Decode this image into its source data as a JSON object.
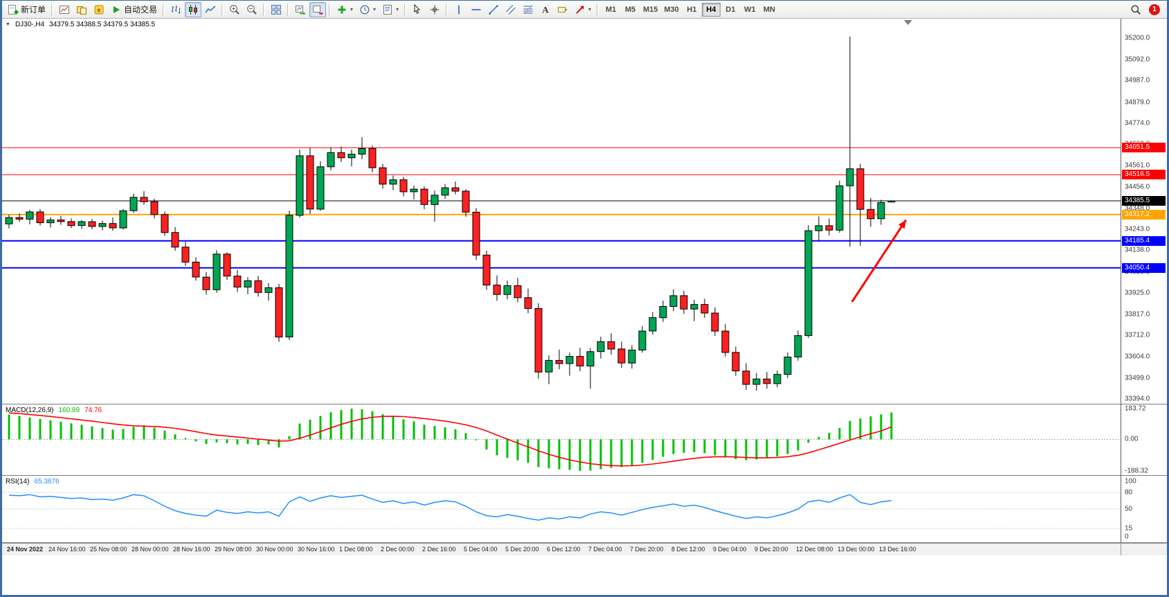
{
  "toolbar": {
    "buttons": [
      {
        "type": "button",
        "name": "new-order",
        "icon": "new-order",
        "label": "新订单"
      },
      {
        "type": "sep"
      },
      {
        "type": "button",
        "name": "new-chart",
        "icon": "new-chart"
      },
      {
        "type": "button",
        "name": "profiles",
        "icon": "profiles"
      },
      {
        "type": "button",
        "name": "metaeditor",
        "icon": "metaeditor"
      },
      {
        "type": "button",
        "name": "autotrading",
        "icon": "play",
        "label": "自动交易"
      },
      {
        "type": "sep"
      },
      {
        "type": "button",
        "name": "bar-chart-mode",
        "icon": "bars"
      },
      {
        "type": "button",
        "name": "candlestick-mode",
        "icon": "candles",
        "active": true
      },
      {
        "type": "button",
        "name": "line-chart-mode",
        "icon": "line"
      },
      {
        "type": "sep"
      },
      {
        "type": "button",
        "name": "zoom-in",
        "icon": "zoom-in"
      },
      {
        "type": "button",
        "name": "zoom-out",
        "icon": "zoom-out"
      },
      {
        "type": "sep"
      },
      {
        "type": "button",
        "name": "tile-windows",
        "icon": "tile"
      },
      {
        "type": "sep"
      },
      {
        "type": "button",
        "name": "auto-scroll",
        "icon": "auto-scroll"
      },
      {
        "type": "button",
        "name": "chart-shift",
        "icon": "chart-shift",
        "active": true
      },
      {
        "type": "sep"
      },
      {
        "type": "button",
        "name": "indicators-list",
        "icon": "indicator-plus",
        "dropdown": true
      },
      {
        "type": "button",
        "name": "periods-list",
        "icon": "clock",
        "dropdown": true
      },
      {
        "type": "button",
        "name": "templates",
        "icon": "template",
        "dropdown": true
      },
      {
        "type": "sep"
      },
      {
        "type": "button",
        "name": "cursor-tool",
        "icon": "cursor"
      },
      {
        "type": "button",
        "name": "crosshair-tool",
        "icon": "crosshair"
      },
      {
        "type": "sep"
      },
      {
        "type": "button",
        "name": "vertical-line-tool",
        "icon": "vline"
      },
      {
        "type": "button",
        "name": "horizontal-line-tool",
        "icon": "hline"
      },
      {
        "type": "button",
        "name": "trendline-tool",
        "icon": "trendline"
      },
      {
        "type": "button",
        "name": "channel-tool",
        "icon": "channel"
      },
      {
        "type": "button",
        "name": "fibonacci-tool",
        "icon": "fibonacci"
      },
      {
        "type": "button",
        "name": "text-tool",
        "icon": "text"
      },
      {
        "type": "button",
        "name": "label-tool",
        "icon": "label"
      },
      {
        "type": "button",
        "name": "arrows-tool",
        "icon": "arrow-shape",
        "dropdown": true
      },
      {
        "type": "sep"
      },
      {
        "type": "timeframes"
      },
      {
        "type": "spacer"
      },
      {
        "type": "button",
        "name": "search",
        "icon": "search"
      },
      {
        "type": "badge",
        "name": "notifications",
        "text": "1",
        "color": "#e01212"
      }
    ],
    "timeframes": {
      "items": [
        "M1",
        "M5",
        "M15",
        "M30",
        "H1",
        "H4",
        "D1",
        "W1",
        "MN"
      ],
      "active": "H4"
    }
  },
  "chart": {
    "symbol_period": "DJ30-,H4",
    "ohlc": "34379.5 34388.5 34379.5 34385.5"
  },
  "chart_data": {
    "type": "candlestick",
    "symbol": "DJ30-",
    "timeframe": "H4",
    "up_color": "#00A651",
    "down_color": "#FF2020",
    "wick_color": "#000000",
    "layout": {
      "x0": 10,
      "dx": 15,
      "shift_marker_candle": 86.6
    },
    "price_panel": {
      "ylim": [
        33370,
        35297
      ],
      "ticks": [
        35200,
        35092,
        34987,
        34879,
        34774,
        34669,
        34561,
        34456,
        34348,
        34243,
        34138,
        34030,
        33925,
        33817,
        33712,
        33604,
        33499,
        33394
      ]
    },
    "levels": [
      {
        "price": 34651.5,
        "color": "#FF0000",
        "width": 1,
        "label": "34651.5"
      },
      {
        "price": 34516.5,
        "color": "#FF0000",
        "width": 1,
        "label": "34516.5"
      },
      {
        "price": 34385.5,
        "color": "#000000",
        "width": 1,
        "label": "34385.5"
      },
      {
        "price": 34317.2,
        "color": "#FFA500",
        "width": 2,
        "label": "34317.2"
      },
      {
        "price": 34185.4,
        "color": "#0000FF",
        "width": 2,
        "label": "34185.4"
      },
      {
        "price": 34050.4,
        "color": "#0000FF",
        "width": 2,
        "label": "34050.4"
      }
    ],
    "arrow": {
      "from_candle": 81.2,
      "from_price": 33880,
      "to_candle": 86.4,
      "to_price": 34290,
      "color": "#FF0000",
      "width": 3
    },
    "candles": [
      [
        34270,
        34316,
        34248,
        34302
      ],
      [
        34302,
        34322,
        34280,
        34294
      ],
      [
        34294,
        34340,
        34268,
        34330
      ],
      [
        34330,
        34344,
        34262,
        34276
      ],
      [
        34276,
        34304,
        34252,
        34290
      ],
      [
        34290,
        34310,
        34266,
        34282
      ],
      [
        34282,
        34298,
        34250,
        34262
      ],
      [
        34262,
        34290,
        34246,
        34281
      ],
      [
        34281,
        34294,
        34244,
        34257
      ],
      [
        34257,
        34286,
        34238,
        34272
      ],
      [
        34272,
        34302,
        34236,
        34250
      ],
      [
        34250,
        34344,
        34242,
        34336
      ],
      [
        34336,
        34422,
        34326,
        34403
      ],
      [
        34403,
        34434,
        34366,
        34381
      ],
      [
        34381,
        34396,
        34298,
        34317
      ],
      [
        34317,
        34332,
        34210,
        34227
      ],
      [
        34227,
        34254,
        34136,
        34154
      ],
      [
        34154,
        34180,
        34060,
        34079
      ],
      [
        34079,
        34104,
        33986,
        34004
      ],
      [
        34004,
        34030,
        33916,
        33941
      ],
      [
        33941,
        34138,
        33926,
        34119
      ],
      [
        34119,
        34128,
        33990,
        34009
      ],
      [
        34009,
        34040,
        33930,
        33954
      ],
      [
        33954,
        34004,
        33918,
        33986
      ],
      [
        33986,
        34010,
        33906,
        33927
      ],
      [
        33927,
        33974,
        33886,
        33951
      ],
      [
        33951,
        33970,
        33680,
        33704
      ],
      [
        33704,
        34336,
        33688,
        34313
      ],
      [
        34313,
        34642,
        34302,
        34611
      ],
      [
        34611,
        34650,
        34320,
        34344
      ],
      [
        34344,
        34584,
        34336,
        34556
      ],
      [
        34556,
        34654,
        34538,
        34627
      ],
      [
        34627,
        34656,
        34580,
        34601
      ],
      [
        34601,
        34642,
        34558,
        34619
      ],
      [
        34619,
        34704,
        34594,
        34647
      ],
      [
        34647,
        34662,
        34528,
        34551
      ],
      [
        34551,
        34570,
        34446,
        34469
      ],
      [
        34469,
        34512,
        34438,
        34491
      ],
      [
        34491,
        34506,
        34408,
        34431
      ],
      [
        34431,
        34462,
        34393,
        34444
      ],
      [
        34444,
        34458,
        34343,
        34367
      ],
      [
        34367,
        34437,
        34281,
        34414
      ],
      [
        34414,
        34470,
        34396,
        34451
      ],
      [
        34451,
        34482,
        34418,
        34434
      ],
      [
        34434,
        34444,
        34306,
        34329
      ],
      [
        34329,
        34349,
        34090,
        34114
      ],
      [
        34114,
        34136,
        33940,
        33964
      ],
      [
        33964,
        34012,
        33886,
        33917
      ],
      [
        33917,
        33986,
        33893,
        33961
      ],
      [
        33961,
        34000,
        33878,
        33901
      ],
      [
        33901,
        33946,
        33823,
        33847
      ],
      [
        33847,
        33873,
        33496,
        33529
      ],
      [
        33529,
        33612,
        33468,
        33587
      ],
      [
        33587,
        33641,
        33543,
        33571
      ],
      [
        33571,
        33626,
        33510,
        33607
      ],
      [
        33607,
        33651,
        33533,
        33559
      ],
      [
        33559,
        33649,
        33446,
        33631
      ],
      [
        33631,
        33706,
        33596,
        33681
      ],
      [
        33681,
        33723,
        33616,
        33644
      ],
      [
        33644,
        33681,
        33550,
        33574
      ],
      [
        33574,
        33663,
        33546,
        33639
      ],
      [
        33639,
        33759,
        33626,
        33734
      ],
      [
        33734,
        33829,
        33716,
        33801
      ],
      [
        33801,
        33886,
        33780,
        33857
      ],
      [
        33857,
        33943,
        33834,
        33911
      ],
      [
        33911,
        33936,
        33820,
        33844
      ],
      [
        33844,
        33891,
        33783,
        33867
      ],
      [
        33867,
        33896,
        33800,
        33824
      ],
      [
        33824,
        33853,
        33710,
        33734
      ],
      [
        33734,
        33769,
        33606,
        33627
      ],
      [
        33627,
        33656,
        33510,
        33534
      ],
      [
        33534,
        33573,
        33440,
        33467
      ],
      [
        33467,
        33524,
        33436,
        33494
      ],
      [
        33494,
        33529,
        33446,
        33471
      ],
      [
        33471,
        33536,
        33453,
        33517
      ],
      [
        33517,
        33627,
        33499,
        33604
      ],
      [
        33604,
        33737,
        33586,
        33711
      ],
      [
        33711,
        34264,
        33700,
        34236
      ],
      [
        34236,
        34307,
        34186,
        34261
      ],
      [
        34261,
        34297,
        34213,
        34239
      ],
      [
        34239,
        34487,
        34226,
        34461
      ],
      [
        34461,
        35208,
        34156,
        34546
      ],
      [
        34546,
        34571,
        34160,
        34343
      ],
      [
        34343,
        34400,
        34256,
        34296
      ],
      [
        34296,
        34391,
        34266,
        34377
      ],
      [
        34379.5,
        34388.5,
        34379.5,
        34385.5
      ]
    ],
    "time_labels": [
      "24 Nov 2022",
      "24 Nov 16:00",
      "25 Nov 08:00",
      "28 Nov 00:00",
      "28 Nov 16:00",
      "29 Nov 08:00",
      "30 Nov 00:00",
      "30 Nov 16:00",
      "1 Dec 08:00",
      "2 Dec 00:00",
      "2 Dec 16:00",
      "5 Dec 04:00",
      "5 Dec 20:00",
      "6 Dec 12:00",
      "7 Dec 04:00",
      "7 Dec 20:00",
      "8 Dec 12:00",
      "9 Dec 04:00",
      "9 Dec 20:00",
      "12 Dec 08:00",
      "13 Dec 00:00",
      "13 Dec 16:00"
    ],
    "label_every": 4,
    "macd": {
      "label": "MACD(12,26,9)",
      "value_main": "160.89",
      "value_signal": "74.76",
      "ylim": [
        -188.32,
        183.72
      ],
      "ticks": [
        {
          "v": 183.72,
          "label": "183.72"
        },
        {
          "v": 0,
          "label": "0.00"
        },
        {
          "v": -188.32,
          "label": "-188.32"
        }
      ],
      "hist_color": "#00C000",
      "signal_color": "#FF0000",
      "histogram": [
        148,
        140,
        131,
        122,
        114,
        105,
        96,
        87,
        78,
        68,
        58,
        62,
        75,
        84,
        70,
        52,
        30,
        8,
        -12,
        -28,
        -18,
        -22,
        -30,
        -28,
        -34,
        -30,
        -48,
        20,
        95,
        118,
        140,
        162,
        175,
        183.72,
        180,
        168,
        150,
        138,
        120,
        108,
        88,
        80,
        72,
        60,
        38,
        -5,
        -60,
        -95,
        -110,
        -125,
        -140,
        -165,
        -172,
        -178,
        -182,
        -188.32,
        -186,
        -178,
        -170,
        -165,
        -155,
        -140,
        -122,
        -104,
        -88,
        -80,
        -76,
        -82,
        -95,
        -108,
        -118,
        -124,
        -120,
        -112,
        -102,
        -88,
        -66,
        -20,
        15,
        40,
        68,
        110,
        125,
        138,
        150,
        160.89
      ],
      "signal": [
        158,
        154,
        149,
        143,
        137,
        130,
        123,
        116,
        109,
        101,
        93,
        86,
        81,
        79,
        77,
        73,
        66,
        57,
        46,
        35,
        26,
        20,
        14,
        8,
        2,
        -4,
        -10,
        -8,
        7,
        26,
        47,
        69,
        90,
        108,
        122,
        132,
        137,
        138,
        136,
        131,
        124,
        117,
        109,
        99,
        87,
        71,
        50,
        26,
        2,
        -22,
        -45,
        -68,
        -89,
        -107,
        -122,
        -135,
        -145,
        -152,
        -156,
        -158,
        -157,
        -153,
        -147,
        -139,
        -130,
        -121,
        -113,
        -107,
        -104,
        -103,
        -105,
        -108,
        -110,
        -110,
        -108,
        -103,
        -95,
        -80,
        -62,
        -43,
        -24,
        -4,
        16,
        34,
        50,
        74.76
      ]
    },
    "rsi": {
      "label": "RSI(14)",
      "value": "65.3876",
      "ylim": [
        0,
        100
      ],
      "ticks": [
        100,
        80,
        50,
        15,
        0
      ],
      "levels": [
        80,
        50,
        15
      ],
      "color": "#1E90FF",
      "values": [
        75,
        74,
        76,
        72,
        73,
        71,
        69,
        70,
        67,
        68,
        66,
        70,
        76,
        74,
        65,
        55,
        47,
        42,
        39,
        37,
        48,
        44,
        42,
        45,
        43,
        45,
        37,
        63,
        72,
        64,
        70,
        74,
        71,
        73,
        75,
        68,
        62,
        65,
        60,
        63,
        57,
        62,
        65,
        63,
        55,
        45,
        38,
        36,
        40,
        37,
        33,
        30,
        34,
        32,
        36,
        34,
        41,
        45,
        43,
        39,
        44,
        49,
        53,
        56,
        59,
        55,
        57,
        53,
        47,
        42,
        37,
        33,
        36,
        34,
        38,
        43,
        50,
        63,
        66,
        62,
        70,
        76,
        62,
        58,
        63,
        65.39
      ]
    }
  }
}
